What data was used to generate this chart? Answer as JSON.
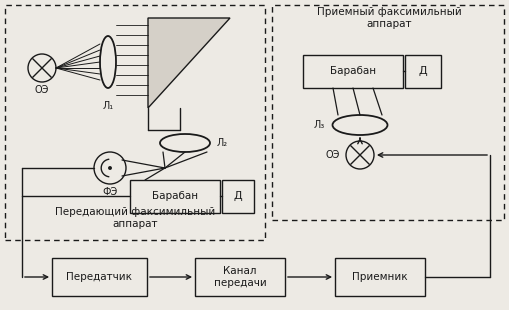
{
  "bg_color": "#edeae4",
  "line_color": "#1a1a1a",
  "box_fill": "#edeae4",
  "left_box_label": "Передающий факсимильный\nаппарат",
  "right_box_label": "Приемный факсимильный\nаппарат",
  "label_OE_left": "ОЭ",
  "label_L1": "Л₁",
  "label_L2": "Л₂",
  "label_FE": "ФЭ",
  "label_Baraban_left": "Барабан",
  "label_D_left": "Д",
  "label_Baraban_right": "Барабан",
  "label_D_right": "Д",
  "label_L3": "Л₃",
  "label_OE_right": "ОЭ",
  "label_Peredatchik": "Передатчик",
  "label_Kanal": "Канал\nпередачи",
  "label_Priemnik": "Приемник"
}
